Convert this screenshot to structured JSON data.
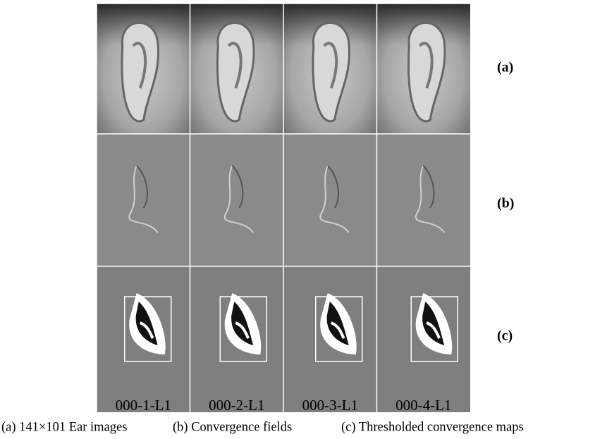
{
  "row_labels": [
    "(a)",
    "(b)",
    "(c)"
  ],
  "columns": [
    "000-1-L1",
    "000-2-L1",
    "000-3-L1",
    "000-4-L1"
  ],
  "captions": [
    "(a) 141×101 Ear images",
    "(b) Convergence fields",
    "(c) Thresholded convergence maps"
  ]
}
